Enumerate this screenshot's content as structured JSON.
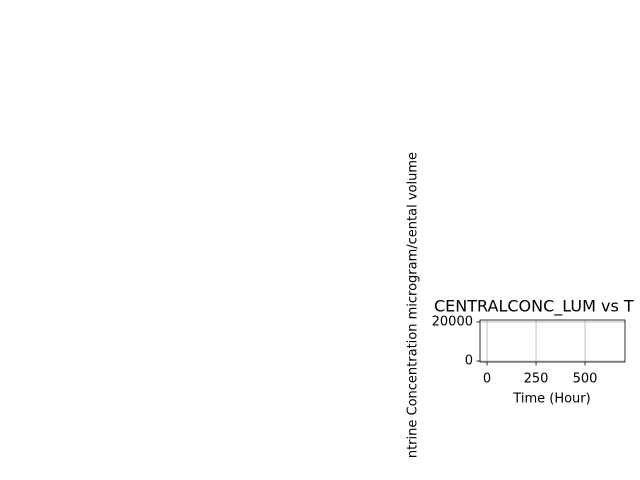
{
  "chart_data": {
    "type": "line",
    "title": "CENTRALCONC_LUM vs T",
    "xlabel": "Time (Hour)",
    "ylabel": "ntrine Concentration microgram/cental volume",
    "xlim": [
      -36,
      704
    ],
    "xticks": [
      0,
      250,
      500
    ],
    "ylim": [
      -500,
      21000
    ],
    "yticks": [
      0,
      20000
    ],
    "grid": true
  }
}
